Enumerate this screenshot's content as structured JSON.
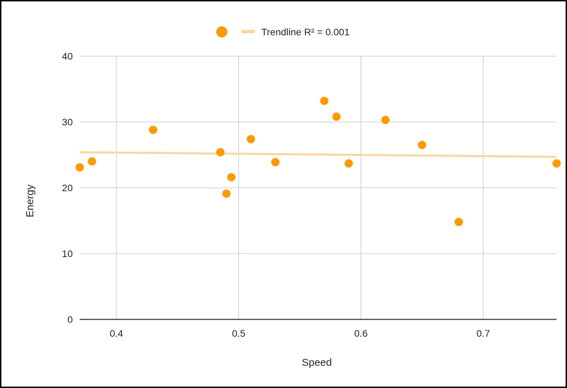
{
  "chart_data": {
    "type": "scatter",
    "title": "",
    "xlabel": "Speed",
    "ylabel": "Energy",
    "xlim": [
      0.37,
      0.76
    ],
    "ylim": [
      0,
      40
    ],
    "xticks": [
      0.4,
      0.5,
      0.6,
      0.7
    ],
    "yticks": [
      0,
      10,
      20,
      30,
      40
    ],
    "grid": true,
    "legend_position": "top",
    "series": [
      {
        "points": [
          {
            "x": 0.37,
            "y": 23.1
          },
          {
            "x": 0.38,
            "y": 24.0
          },
          {
            "x": 0.43,
            "y": 28.8
          },
          {
            "x": 0.485,
            "y": 25.4
          },
          {
            "x": 0.49,
            "y": 19.1
          },
          {
            "x": 0.494,
            "y": 21.6
          },
          {
            "x": 0.51,
            "y": 27.4
          },
          {
            "x": 0.53,
            "y": 23.9
          },
          {
            "x": 0.57,
            "y": 33.2
          },
          {
            "x": 0.58,
            "y": 30.8
          },
          {
            "x": 0.59,
            "y": 23.7
          },
          {
            "x": 0.62,
            "y": 30.3
          },
          {
            "x": 0.65,
            "y": 26.5
          },
          {
            "x": 0.68,
            "y": 14.8
          },
          {
            "x": 0.76,
            "y": 23.7
          }
        ]
      }
    ],
    "trendline": {
      "label": "Trendline R² = 0.001",
      "type": "linear",
      "points": [
        {
          "x": 0.37,
          "y": 25.4
        },
        {
          "x": 0.76,
          "y": 24.7
        }
      ]
    },
    "colors": {
      "points": "#ff9900",
      "trendline": "#f8d6a4",
      "grid": "#cccccc",
      "axis": "#333333"
    }
  }
}
